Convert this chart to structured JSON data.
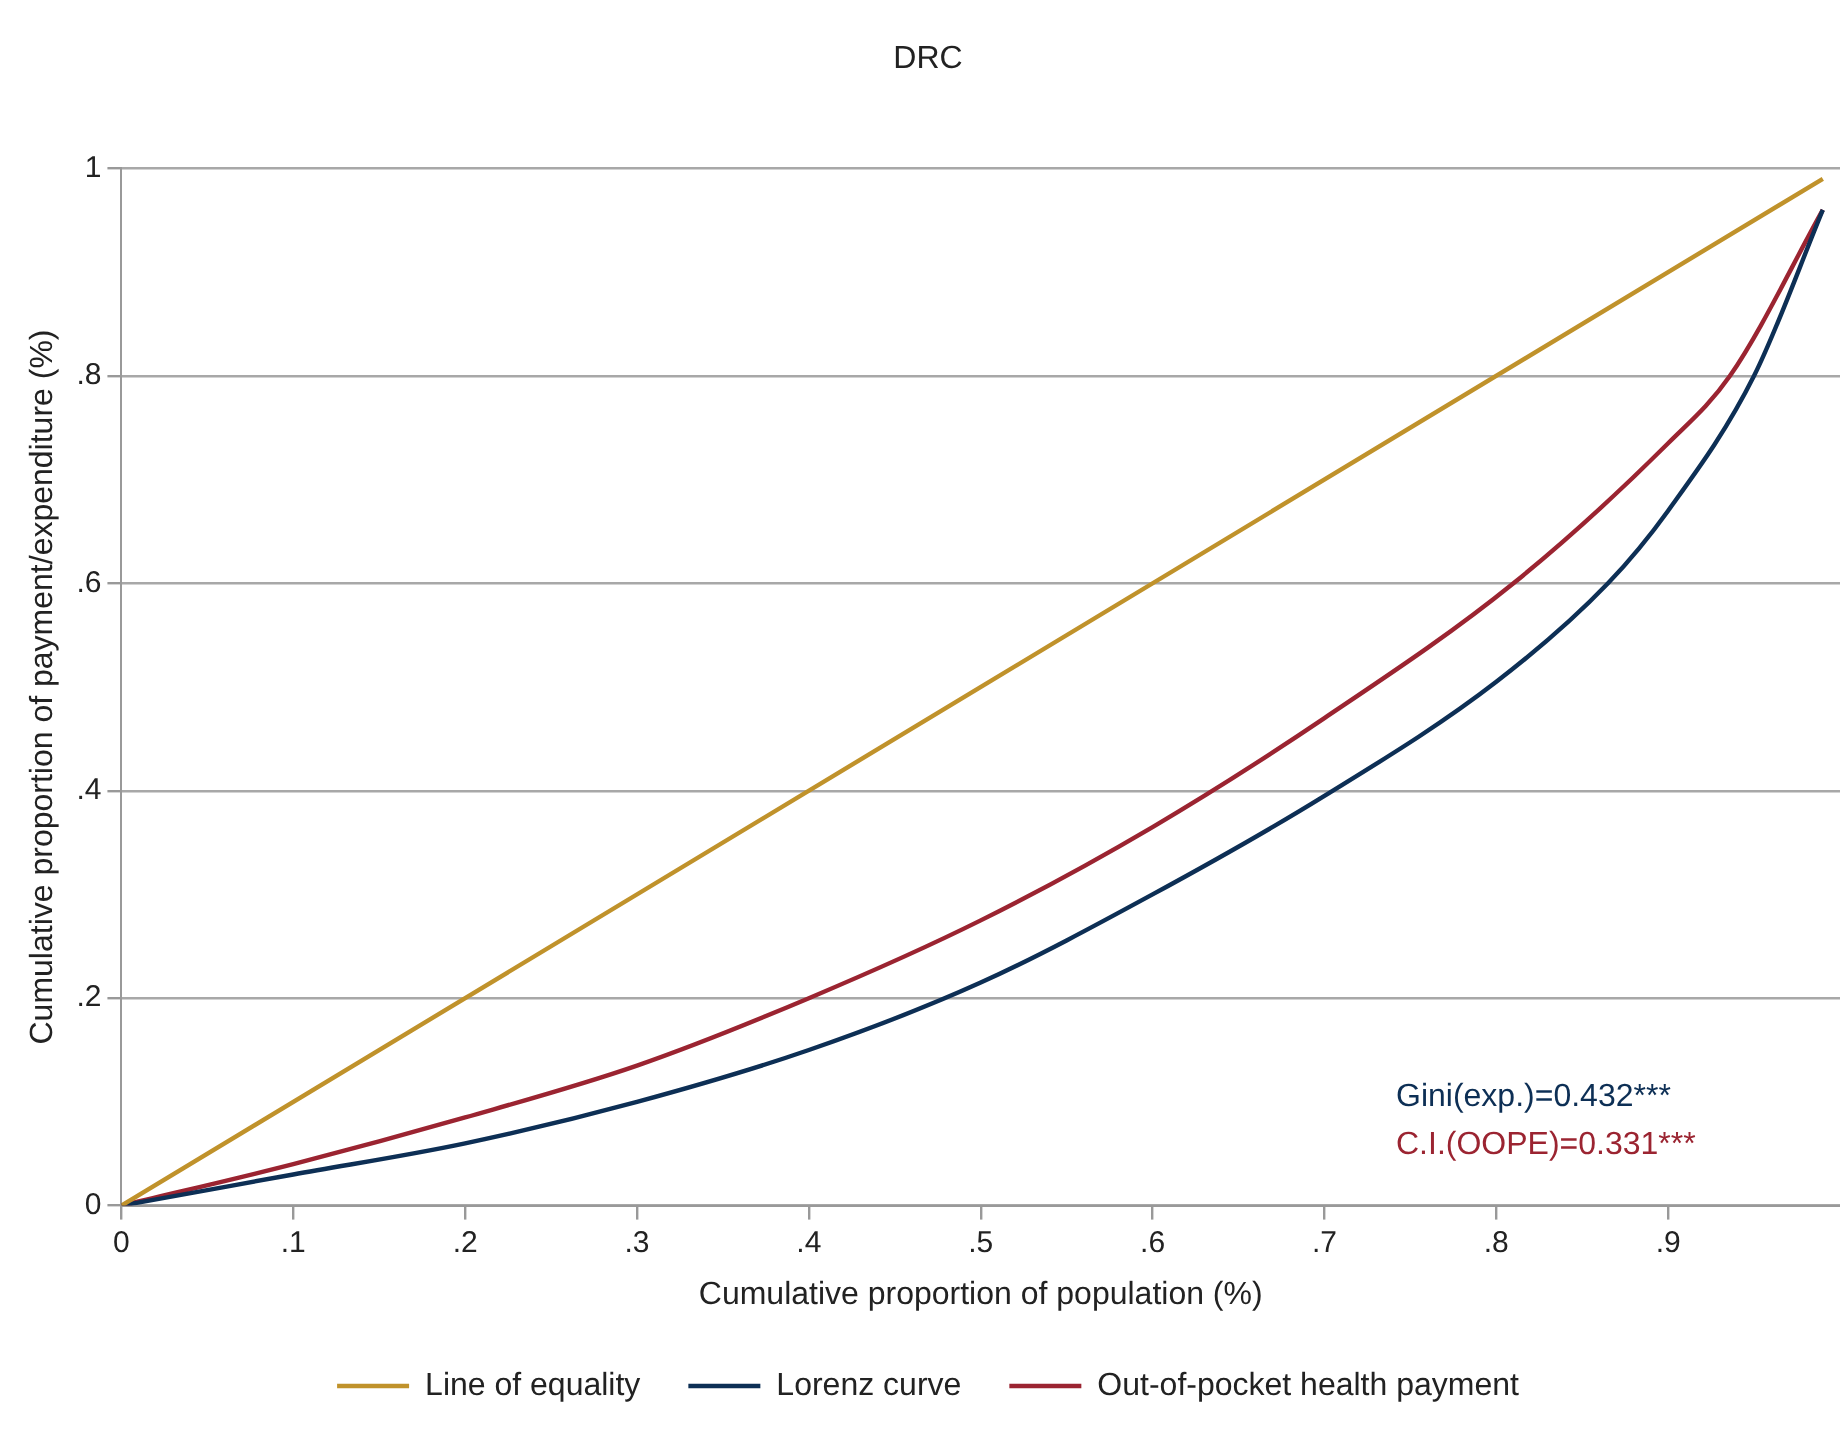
{
  "chart_data": {
    "type": "line",
    "title": "DRC",
    "xlabel": "Cumulative proportion of population (%)",
    "ylabel": "Cumulative proportion of payment/expenditure (%)",
    "series": [
      {
        "name": "Line of equality",
        "color": "#c0922b",
        "x": [
          0,
          0.99
        ],
        "values": [
          0,
          0.99
        ]
      },
      {
        "name": "Lorenz curve",
        "color": "#0d2f55",
        "x": [
          0,
          0.1,
          0.2,
          0.3,
          0.4,
          0.5,
          0.6,
          0.7,
          0.8,
          0.865,
          0.9,
          0.95,
          0.99
        ],
        "values": [
          0,
          0.03,
          0.06,
          0.1,
          0.15,
          0.215,
          0.3,
          0.395,
          0.505,
          0.6,
          0.67,
          0.8,
          0.96
        ]
      },
      {
        "name": "Out-of-pocket health payment",
        "color": "#9b2431",
        "x": [
          0,
          0.1,
          0.2,
          0.3,
          0.4,
          0.5,
          0.6,
          0.7,
          0.81,
          0.9,
          0.936,
          0.99
        ],
        "values": [
          0,
          0.04,
          0.085,
          0.135,
          0.2,
          0.275,
          0.365,
          0.47,
          0.6,
          0.735,
          0.8,
          0.96
        ]
      }
    ],
    "annotations": [
      "Gini(exp.)=0.432***",
      "C.I.(OOPE)=0.331***"
    ],
    "xlim": [
      0,
      1
    ],
    "ylim": [
      0,
      1
    ],
    "xticks": [
      0,
      {
        "value": 0.1,
        "label": ".1"
      },
      {
        "value": 0.2,
        "label": ".2"
      },
      {
        "value": 0.3,
        "label": ".3"
      },
      {
        "value": 0.4,
        "label": ".4"
      },
      {
        "value": 0.5,
        "label": ".5"
      },
      {
        "value": 0.6,
        "label": ".6"
      },
      {
        "value": 0.7,
        "label": ".7"
      },
      {
        "value": 0.8,
        "label": ".8"
      },
      {
        "value": 0.9,
        "label": ".9"
      }
    ],
    "yticks": [
      0,
      {
        "value": 0.2,
        "label": ".2"
      },
      {
        "value": 0.4,
        "label": ".4"
      },
      {
        "value": 0.6,
        "label": ".6"
      },
      {
        "value": 0.8,
        "label": ".8"
      },
      1
    ],
    "grid": "y",
    "legend": "bottom",
    "marker": "none",
    "line_style": "solid"
  }
}
